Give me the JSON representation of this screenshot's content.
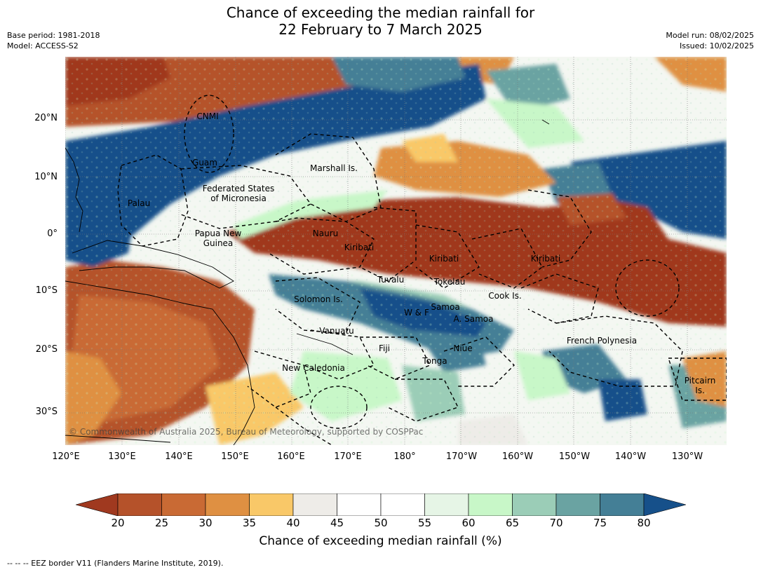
{
  "title_line1": "Chance of exceeding the median rainfall for",
  "title_line2": "22 February to 7 March 2025",
  "meta_left": [
    "Base period: 1981-2018",
    "Model: ACCESS-S2"
  ],
  "meta_right": [
    "Model run: 08/02/2025",
    "Issued: 10/02/2025"
  ],
  "lat_labels": [
    "20°N",
    "10°N",
    "0°",
    "10°S",
    "20°S",
    "30°S"
  ],
  "lon_labels": [
    "120°E",
    "130°E",
    "140°E",
    "150°E",
    "160°E",
    "170°E",
    "180°",
    "170°W",
    "160°W",
    "150°W",
    "140°W",
    "130°W"
  ],
  "places": [
    {
      "name": "CNMI"
    },
    {
      "name": "Guam"
    },
    {
      "name": "Marshall Is."
    },
    {
      "name": "Federated States\nof Micronesia"
    },
    {
      "name": "Palau"
    },
    {
      "name": "Papua New\nGuinea"
    },
    {
      "name": "Nauru"
    },
    {
      "name": "Kiribati"
    },
    {
      "name": "Kiribati"
    },
    {
      "name": "Kiribati"
    },
    {
      "name": "Tuvalu"
    },
    {
      "name": "Tokelau"
    },
    {
      "name": "Cook Is."
    },
    {
      "name": "Solomon Is."
    },
    {
      "name": "W & F"
    },
    {
      "name": "Samoa"
    },
    {
      "name": "A. Samoa"
    },
    {
      "name": "Vanuatu"
    },
    {
      "name": "Fiji"
    },
    {
      "name": "Niue"
    },
    {
      "name": "Tonga"
    },
    {
      "name": "French Polynesia"
    },
    {
      "name": "New Caledonia"
    },
    {
      "name": "Pitcairn\nIs."
    }
  ],
  "copyright": "© Commonwealth of Australia 2025, Bureau of Meteorology, supported by COSPPac",
  "colorbar": {
    "ticks": [
      "20",
      "25",
      "30",
      "35",
      "40",
      "45",
      "50",
      "55",
      "60",
      "65",
      "70",
      "75",
      "80"
    ],
    "colors": [
      "#a0391f",
      "#b5522a",
      "#c96a34",
      "#df9042",
      "#f9c868",
      "#eeece8",
      "#ffffff",
      "#ffffff",
      "#e6f5e6",
      "#c8f7c8",
      "#9bcdb7",
      "#6aa3a2",
      "#447f96",
      "#16508a"
    ],
    "label": "Chance of exceeding median rainfall (%)"
  },
  "footer": "--  --  -- EEZ border V11 (Flanders Marine Institute, 2019)."
}
